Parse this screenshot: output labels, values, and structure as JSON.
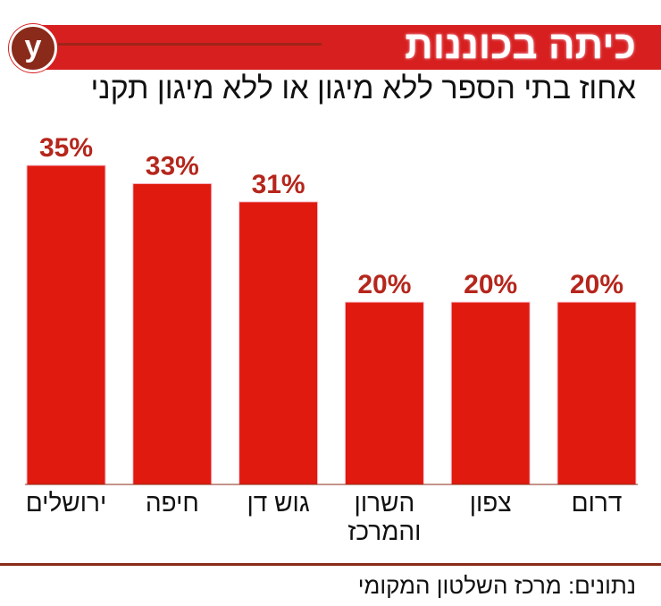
{
  "header": {
    "title": "כיתה בכוננות",
    "logo": "y",
    "subtitle": "אחוז בתי הספר ללא מיגון או ללא מיגון תקני"
  },
  "chart_data": {
    "type": "bar",
    "categories": [
      "ירושלים",
      "חיפה",
      "גוש דן",
      "השרון והמרכז",
      "צפון",
      "דרום"
    ],
    "values": [
      35,
      33,
      31,
      20,
      20,
      20
    ],
    "labels": [
      "35%",
      "33%",
      "31%",
      "20%",
      "20%",
      "20%"
    ],
    "ylim": [
      0,
      40
    ],
    "grid": false,
    "bar_color": "#e01a0e",
    "label_color": "#b5261c"
  },
  "footer": {
    "source": "נתונים: מרכז השלטון המקומי"
  }
}
